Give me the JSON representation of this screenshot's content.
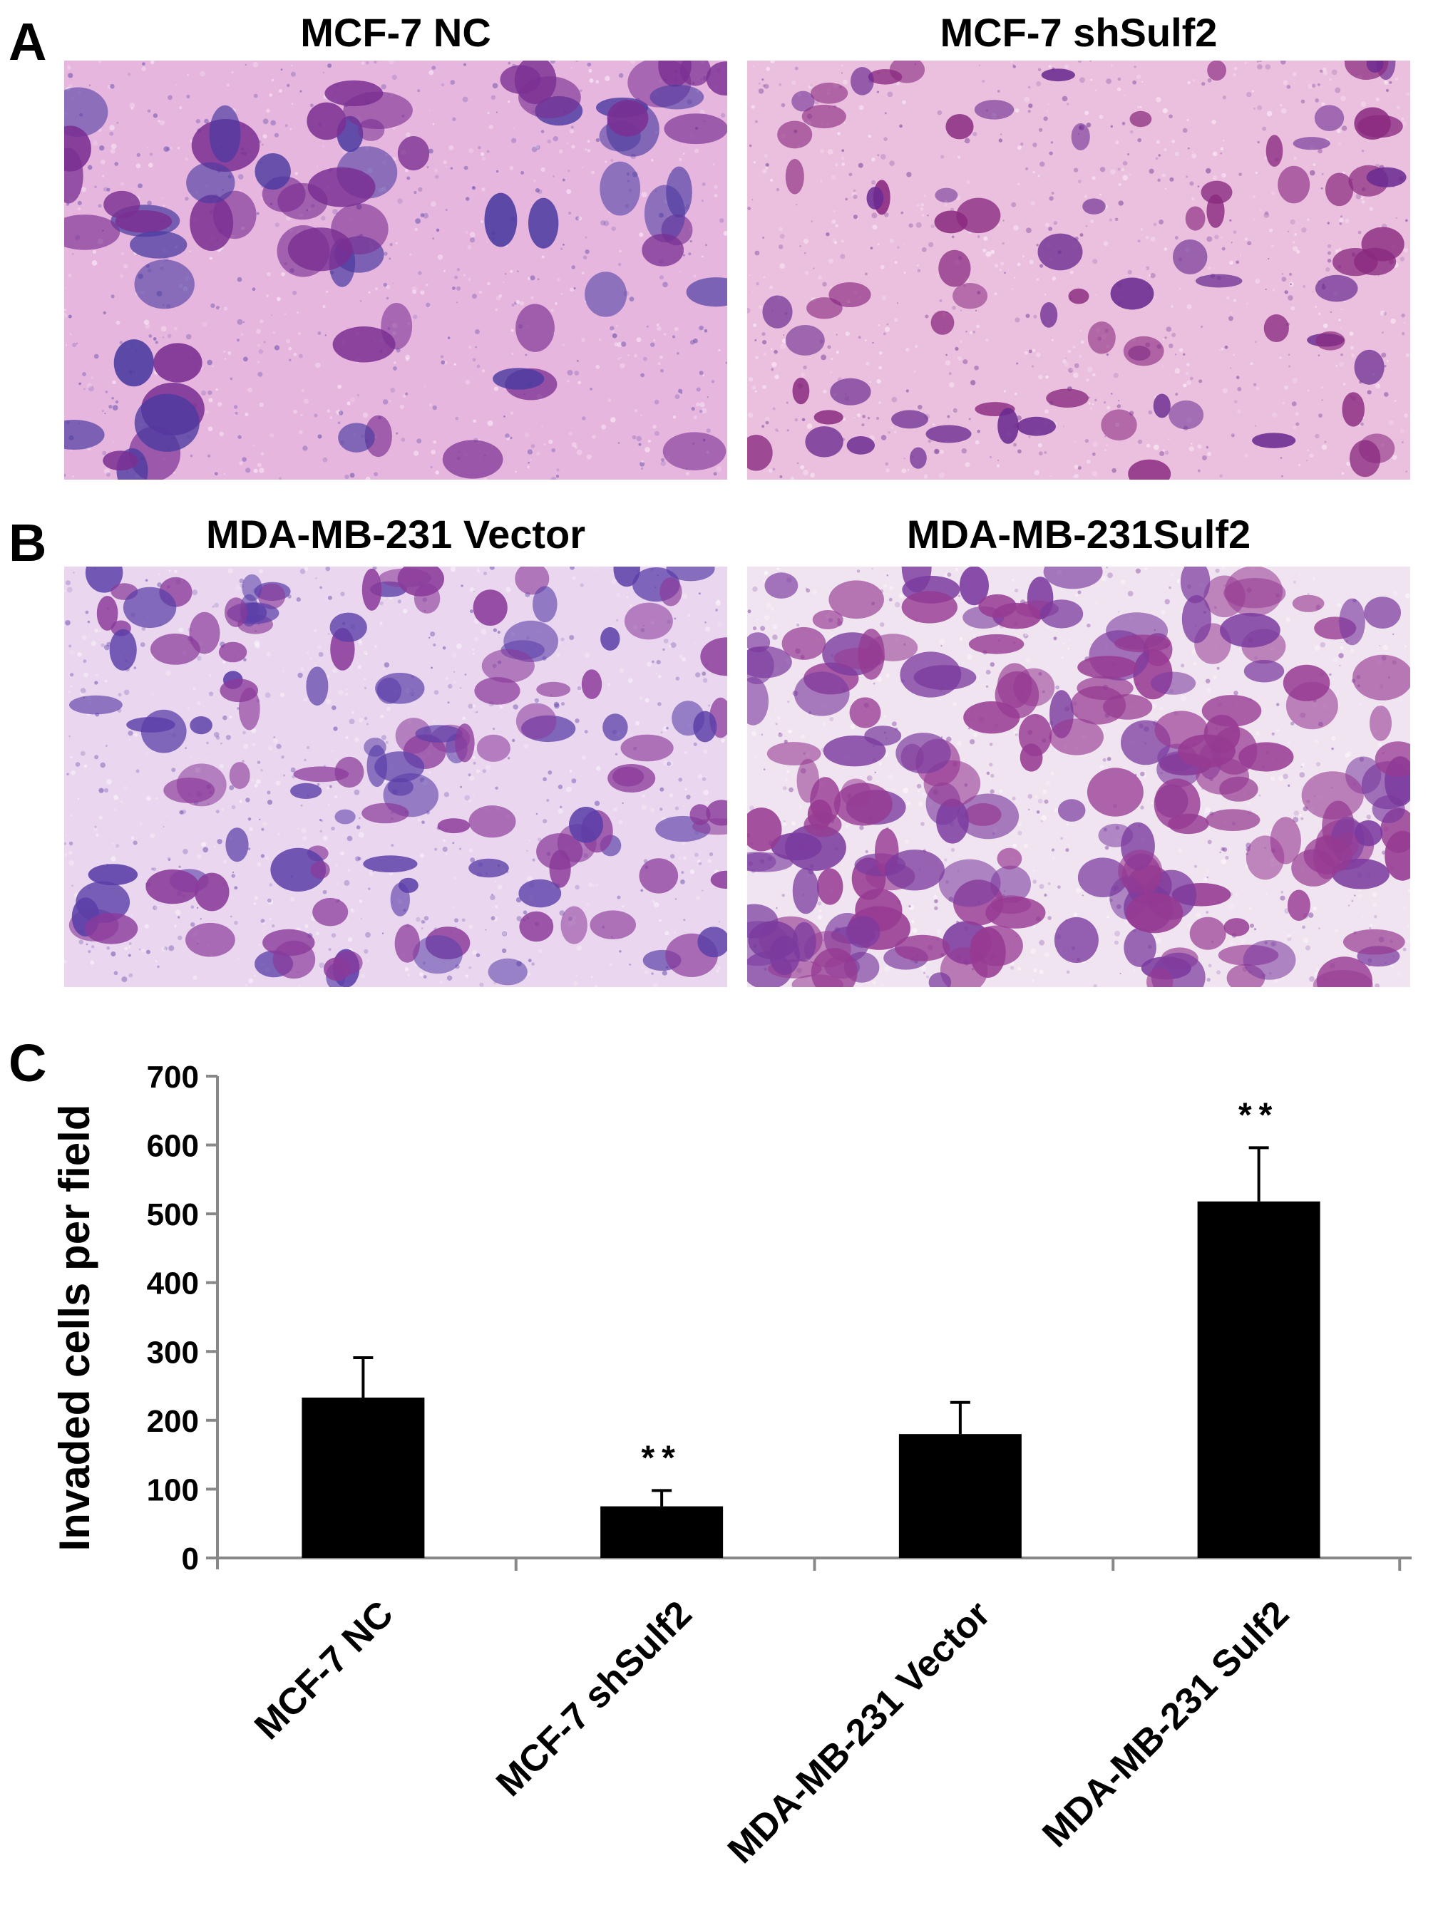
{
  "panel_letters": [
    "A",
    "B",
    "C"
  ],
  "micrographs": [
    {
      "title": "MCF-7 NC",
      "stain": "sparse-clustered",
      "bg": "#e7b6df",
      "cell": "#7a2f92",
      "cell2": "#4a3aa0"
    },
    {
      "title": "MCF-7 shSulf2",
      "stain": "sparse-small",
      "bg": "#ebc0df",
      "cell": "#8a2a80",
      "cell2": "#6a2a90"
    },
    {
      "title": "MDA-MB-231 Vector",
      "stain": "medium",
      "bg": "#ead6ee",
      "cell": "#8a3a9a",
      "cell2": "#5a3ea8"
    },
    {
      "title": "MDA-MB-231Sulf2",
      "stain": "dense",
      "bg": "#f1e4f1",
      "cell": "#963a92",
      "cell2": "#7a3a9e"
    }
  ],
  "chart_data": {
    "type": "bar",
    "categories": [
      "MCF-7 NC",
      "MCF-7 shSulf2",
      "MDA-MB-231 Vector",
      "MDA-MB-231 Sulf2"
    ],
    "values": [
      233,
      75,
      180,
      518
    ],
    "errors": [
      58,
      23,
      46,
      78
    ],
    "significance": [
      "",
      "**",
      "",
      "**"
    ],
    "ylabel": "Invaded cells per field",
    "xlabel": "",
    "ylim": [
      0,
      700
    ],
    "yticks": [
      0,
      100,
      200,
      300,
      400,
      500,
      600,
      700
    ],
    "bar_color": "#000000",
    "axis_color": "#888888",
    "grid": false
  }
}
